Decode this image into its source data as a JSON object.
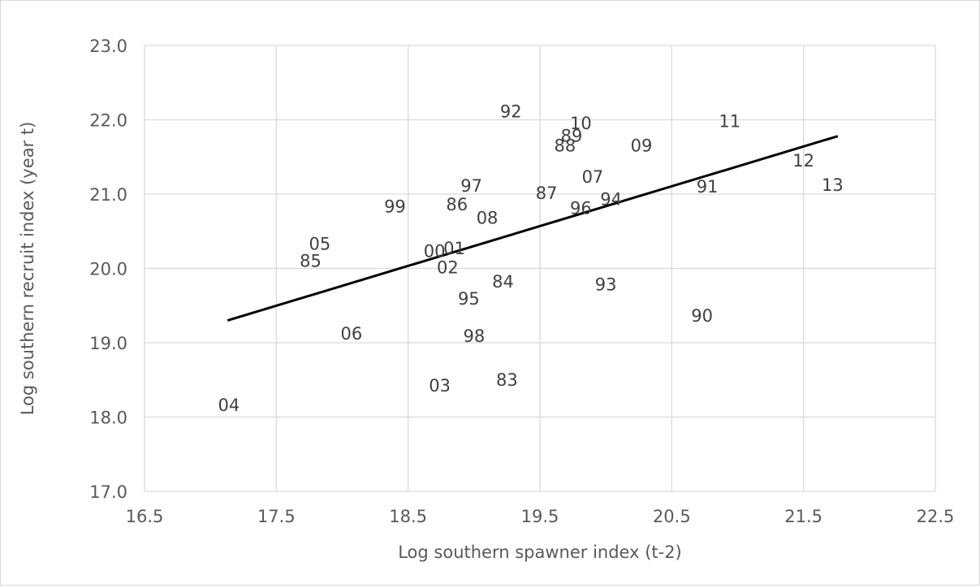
{
  "chart_data": {
    "type": "scatter",
    "title": "",
    "xlabel": "Log southern spawner index (t-2)",
    "ylabel": "Log southern recruit index (year t)",
    "xlim": [
      16.5,
      22.5
    ],
    "ylim": [
      17.0,
      23.0
    ],
    "x_ticks": [
      "16.5",
      "17.5",
      "18.5",
      "19.5",
      "20.5",
      "21.5",
      "22.5"
    ],
    "y_ticks": [
      "17.0",
      "18.0",
      "19.0",
      "20.0",
      "21.0",
      "22.0",
      "23.0"
    ],
    "grid": true,
    "legend": "none",
    "marker": "year label",
    "points": [
      {
        "label": "83",
        "x": 19.25,
        "y": 18.51
      },
      {
        "label": "84",
        "x": 19.22,
        "y": 19.83
      },
      {
        "label": "85",
        "x": 17.76,
        "y": 20.11
      },
      {
        "label": "86",
        "x": 18.87,
        "y": 20.87
      },
      {
        "label": "87",
        "x": 19.55,
        "y": 21.02
      },
      {
        "label": "88",
        "x": 19.69,
        "y": 21.66
      },
      {
        "label": "89",
        "x": 19.74,
        "y": 21.79
      },
      {
        "label": "90",
        "x": 20.73,
        "y": 19.37
      },
      {
        "label": "91",
        "x": 20.77,
        "y": 21.11
      },
      {
        "label": "92",
        "x": 19.28,
        "y": 22.12
      },
      {
        "label": "93",
        "x": 20.0,
        "y": 19.79
      },
      {
        "label": "94",
        "x": 20.04,
        "y": 20.94
      },
      {
        "label": "95",
        "x": 18.96,
        "y": 19.6
      },
      {
        "label": "96",
        "x": 19.81,
        "y": 20.82
      },
      {
        "label": "97",
        "x": 18.98,
        "y": 21.12
      },
      {
        "label": "98",
        "x": 19.0,
        "y": 19.1
      },
      {
        "label": "99",
        "x": 18.4,
        "y": 20.84
      },
      {
        "label": "00",
        "x": 18.7,
        "y": 20.24
      },
      {
        "label": "01",
        "x": 18.85,
        "y": 20.28
      },
      {
        "label": "02",
        "x": 18.8,
        "y": 20.02
      },
      {
        "label": "03",
        "x": 18.74,
        "y": 18.43
      },
      {
        "label": "04",
        "x": 17.14,
        "y": 18.17
      },
      {
        "label": "05",
        "x": 17.83,
        "y": 20.34
      },
      {
        "label": "06",
        "x": 18.07,
        "y": 19.13
      },
      {
        "label": "07",
        "x": 19.9,
        "y": 21.24
      },
      {
        "label": "08",
        "x": 19.1,
        "y": 20.69
      },
      {
        "label": "09",
        "x": 20.27,
        "y": 21.66
      },
      {
        "label": "10",
        "x": 19.81,
        "y": 21.96
      },
      {
        "label": "11",
        "x": 20.94,
        "y": 21.99
      },
      {
        "label": "12",
        "x": 21.5,
        "y": 21.46
      },
      {
        "label": "13",
        "x": 21.72,
        "y": 21.13
      }
    ],
    "trendline": {
      "x": [
        17.13,
        21.76
      ],
      "y": [
        19.3,
        21.78
      ]
    }
  }
}
